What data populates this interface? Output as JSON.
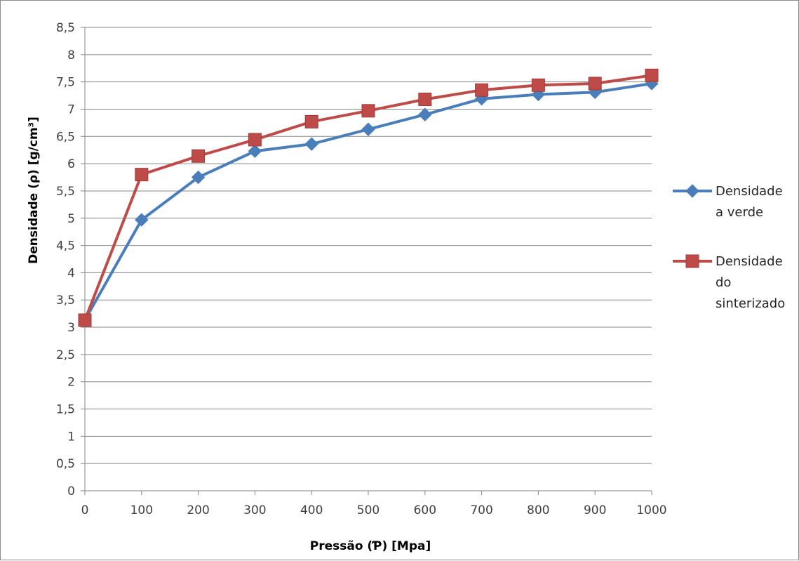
{
  "chart_data": {
    "type": "line",
    "title": "",
    "xlabel": "Pressão (Ƥ) [Mpa]",
    "ylabel": "Densidade (ρ) [g/cm³]",
    "x": [
      0,
      100,
      200,
      300,
      400,
      500,
      600,
      700,
      800,
      900,
      1000
    ],
    "x_tick_labels": [
      "0",
      "100",
      "200",
      "300",
      "400",
      "500",
      "600",
      "700",
      "800",
      "900",
      "1000"
    ],
    "xlim": [
      0,
      1000
    ],
    "ylim": [
      0,
      8.5
    ],
    "y_tick_labels": [
      "0",
      "0,5",
      "1",
      "1,5",
      "2",
      "2,5",
      "3",
      "3,5",
      "4",
      "4,5",
      "5",
      "5,5",
      "6",
      "6,5",
      "7",
      "7,5",
      "8",
      "8,5"
    ],
    "grid": "horizontal",
    "legend_position": "right",
    "series": [
      {
        "name_lines": [
          "Densidade",
          "a verde"
        ],
        "color": "#4a7ebb",
        "marker": "diamond",
        "values": [
          3.13,
          4.97,
          5.75,
          6.23,
          6.36,
          6.63,
          6.9,
          7.19,
          7.27,
          7.31,
          7.47
        ]
      },
      {
        "name_lines": [
          "Densidade",
          "do",
          "sinterizado"
        ],
        "color": "#be4b48",
        "marker": "square",
        "values": [
          3.13,
          5.8,
          6.14,
          6.44,
          6.77,
          6.97,
          7.18,
          7.35,
          7.44,
          7.47,
          7.62
        ]
      }
    ]
  }
}
